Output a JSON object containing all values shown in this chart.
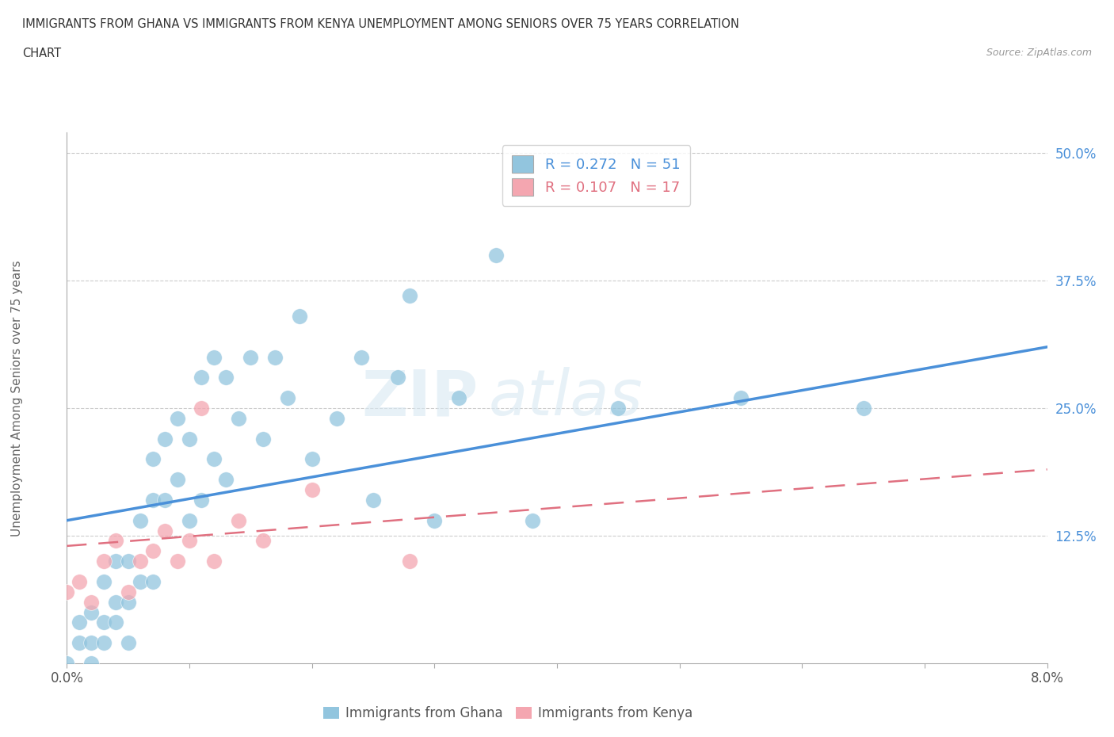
{
  "title_line1": "IMMIGRANTS FROM GHANA VS IMMIGRANTS FROM KENYA UNEMPLOYMENT AMONG SENIORS OVER 75 YEARS CORRELATION",
  "title_line2": "CHART",
  "source_text": "Source: ZipAtlas.com",
  "ylabel": "Unemployment Among Seniors over 75 years",
  "xlim": [
    0.0,
    0.08
  ],
  "ylim": [
    0.0,
    0.52
  ],
  "xtick_labels": [
    "0.0%",
    "",
    "",
    "",
    "",
    "",
    "",
    "",
    "8.0%"
  ],
  "xtick_vals": [
    0.0,
    0.01,
    0.02,
    0.03,
    0.04,
    0.05,
    0.06,
    0.07,
    0.08
  ],
  "ytick_labels": [
    "",
    "12.5%",
    "25.0%",
    "37.5%",
    "50.0%"
  ],
  "ytick_vals": [
    0.0,
    0.125,
    0.25,
    0.375,
    0.5
  ],
  "ghana_R": 0.272,
  "ghana_N": 51,
  "kenya_R": 0.107,
  "kenya_N": 17,
  "ghana_color": "#92C5DE",
  "kenya_color": "#F4A6B0",
  "ghana_line_color": "#4A90D9",
  "kenya_line_color": "#E07080",
  "watermark_zi": "ZIP",
  "watermark_atlas": "atlas",
  "legend_label_ghana": "Immigrants from Ghana",
  "legend_label_kenya": "Immigrants from Kenya",
  "ghana_x": [
    0.0,
    0.001,
    0.001,
    0.002,
    0.002,
    0.002,
    0.003,
    0.003,
    0.003,
    0.004,
    0.004,
    0.004,
    0.005,
    0.005,
    0.005,
    0.006,
    0.006,
    0.007,
    0.007,
    0.007,
    0.008,
    0.008,
    0.009,
    0.009,
    0.01,
    0.01,
    0.011,
    0.011,
    0.012,
    0.012,
    0.013,
    0.013,
    0.014,
    0.015,
    0.016,
    0.017,
    0.018,
    0.019,
    0.02,
    0.022,
    0.024,
    0.025,
    0.027,
    0.028,
    0.03,
    0.032,
    0.035,
    0.038,
    0.045,
    0.055,
    0.065
  ],
  "ghana_y": [
    0.0,
    0.02,
    0.04,
    0.0,
    0.02,
    0.05,
    0.02,
    0.04,
    0.08,
    0.04,
    0.06,
    0.1,
    0.02,
    0.06,
    0.1,
    0.08,
    0.14,
    0.08,
    0.16,
    0.2,
    0.16,
    0.22,
    0.18,
    0.24,
    0.14,
    0.22,
    0.16,
    0.28,
    0.2,
    0.3,
    0.18,
    0.28,
    0.24,
    0.3,
    0.22,
    0.3,
    0.26,
    0.34,
    0.2,
    0.24,
    0.3,
    0.16,
    0.28,
    0.36,
    0.14,
    0.26,
    0.4,
    0.14,
    0.25,
    0.26,
    0.25
  ],
  "kenya_x": [
    0.0,
    0.001,
    0.002,
    0.003,
    0.004,
    0.005,
    0.006,
    0.007,
    0.008,
    0.009,
    0.01,
    0.011,
    0.012,
    0.014,
    0.016,
    0.02,
    0.028
  ],
  "kenya_y": [
    0.07,
    0.08,
    0.06,
    0.1,
    0.12,
    0.07,
    0.1,
    0.11,
    0.13,
    0.1,
    0.12,
    0.25,
    0.1,
    0.14,
    0.12,
    0.17,
    0.1
  ],
  "ghana_trend": [
    0.14,
    0.31
  ],
  "kenya_trend": [
    0.115,
    0.19
  ]
}
